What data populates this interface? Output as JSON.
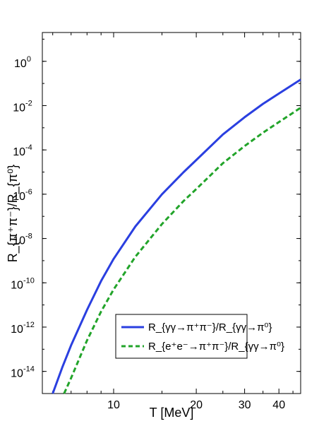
{
  "chart_data": {
    "type": "line",
    "xlabel": "T [MeV]",
    "ylabel": "R_{π⁺π⁻}/R_{π⁰}",
    "xscale": "log",
    "yscale": "log",
    "xlim": [
      5.5,
      48
    ],
    "ylim": [
      1e-15,
      20
    ],
    "x_ticks": [
      {
        "value": 10,
        "label": "10"
      },
      {
        "value": 20,
        "label": "20"
      },
      {
        "value": 30,
        "label": "30"
      },
      {
        "value": 40,
        "label": "40"
      }
    ],
    "y_ticks": [
      {
        "value": 1,
        "base": "10",
        "exp": "0"
      },
      {
        "value": 0.01,
        "base": "10",
        "exp": "-2"
      },
      {
        "value": 0.0001,
        "base": "10",
        "exp": "-4"
      },
      {
        "value": 1e-06,
        "base": "10",
        "exp": "-6"
      },
      {
        "value": 1e-08,
        "base": "10",
        "exp": "-8"
      },
      {
        "value": 1e-10,
        "base": "10",
        "exp": "-10"
      },
      {
        "value": 1e-12,
        "base": "10",
        "exp": "-12"
      },
      {
        "value": 1e-14,
        "base": "10",
        "exp": "-14"
      }
    ],
    "legend_position": "lower-right",
    "grid": false,
    "series": [
      {
        "name": "R_{γγ→π⁺π⁻}/R_{γγ→π⁰}",
        "color": "#2a3fe0",
        "style": "solid",
        "x": [
          6.0,
          6.5,
          7.0,
          8.0,
          9.0,
          10.0,
          12.0,
          15.0,
          18.0,
          20.0,
          25.0,
          30.0,
          35.0,
          40.0,
          48.0
        ],
        "y": [
          1e-15,
          1.5e-14,
          1.5e-13,
          6e-12,
          1.2e-10,
          1.2e-09,
          3.5e-08,
          1e-06,
          1e-05,
          3.5e-05,
          0.0005,
          0.003,
          0.012,
          0.035,
          0.15
        ]
      },
      {
        "name": "R_{e⁺e⁻→π⁺π⁻}/R_{γγ→π⁰}",
        "color": "#22a42a",
        "style": "dashed",
        "x": [
          6.6,
          7.0,
          8.0,
          9.0,
          10.0,
          12.0,
          15.0,
          18.0,
          20.0,
          25.0,
          30.0,
          35.0,
          40.0,
          48.0
        ],
        "y": [
          1e-15,
          5e-15,
          2.5e-13,
          5e-12,
          5e-11,
          1.5e-09,
          4.5e-08,
          5e-07,
          1.7e-06,
          2.5e-05,
          0.00015,
          0.0006,
          0.0018,
          0.008
        ]
      }
    ]
  }
}
